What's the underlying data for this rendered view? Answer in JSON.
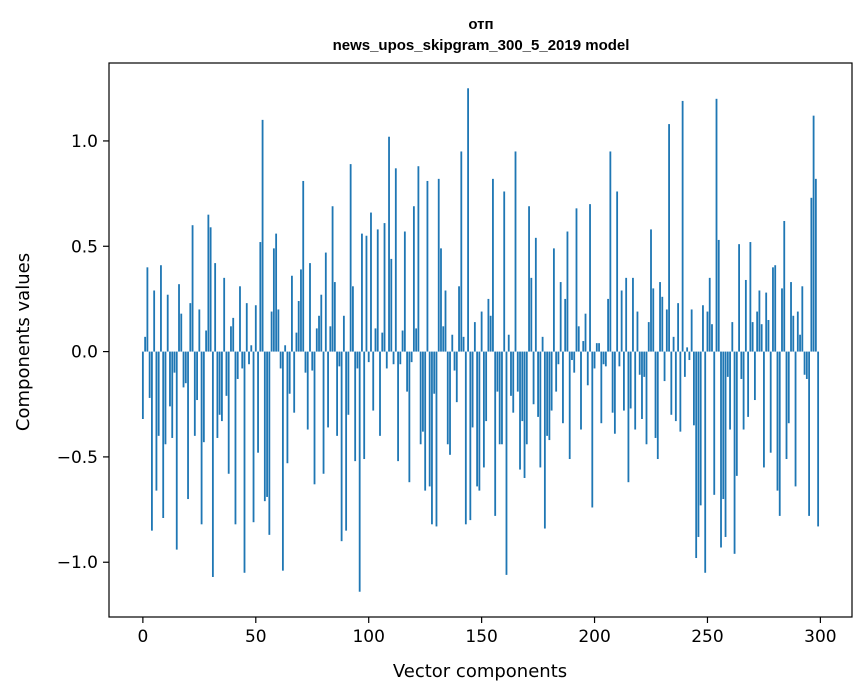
{
  "chart_data": {
    "type": "bar",
    "title": "отп",
    "subtitle": "news_upos_skipgram_300_5_2019 model",
    "xlabel": "Vector components",
    "ylabel": "Components values",
    "bar_color": "#1f77b4",
    "xlim": [
      -15,
      314
    ],
    "ylim": [
      -1.26,
      1.37
    ],
    "xticks": [
      0,
      50,
      100,
      150,
      200,
      250,
      300
    ],
    "xtick_labels": [
      "0",
      "50",
      "100",
      "150",
      "200",
      "250",
      "300"
    ],
    "yticks": [
      -1.0,
      -0.5,
      0.0,
      0.5,
      1.0
    ],
    "ytick_labels": [
      "−1.0",
      "−0.5",
      "0.0",
      "0.5",
      "1.0"
    ],
    "grid": false,
    "x_start": 0,
    "values": [
      -0.32,
      0.07,
      0.4,
      -0.22,
      -0.85,
      0.29,
      -0.66,
      -0.4,
      0.41,
      -0.79,
      -0.44,
      0.27,
      -0.26,
      -0.41,
      -0.1,
      -0.94,
      0.32,
      0.18,
      -0.17,
      -0.15,
      -0.7,
      0.23,
      0.6,
      -0.4,
      -0.23,
      0.2,
      -0.82,
      -0.43,
      0.1,
      0.65,
      0.59,
      -1.07,
      0.42,
      -0.41,
      -0.3,
      -0.33,
      0.35,
      -0.21,
      -0.58,
      0.12,
      0.16,
      -0.82,
      -0.13,
      0.31,
      -0.08,
      -1.05,
      0.23,
      -0.06,
      0.03,
      -0.81,
      0.22,
      -0.48,
      0.52,
      1.1,
      -0.71,
      -0.69,
      -0.87,
      0.19,
      0.49,
      0.56,
      0.2,
      -0.08,
      -1.04,
      0.03,
      -0.53,
      -0.2,
      0.36,
      -0.29,
      0.09,
      0.24,
      0.39,
      0.81,
      -0.1,
      -0.37,
      0.42,
      -0.09,
      -0.63,
      0.11,
      0.17,
      0.27,
      -0.58,
      0.47,
      -0.36,
      0.12,
      0.69,
      0.33,
      -0.4,
      -0.07,
      -0.9,
      0.17,
      -0.85,
      -0.3,
      0.89,
      0.31,
      -0.52,
      -0.08,
      -1.14,
      0.56,
      -0.51,
      0.55,
      -0.05,
      0.66,
      -0.28,
      0.11,
      0.58,
      -0.4,
      0.09,
      0.61,
      -0.08,
      1.02,
      0.44,
      -0.06,
      0.87,
      -0.52,
      -0.06,
      0.1,
      0.57,
      -0.19,
      -0.62,
      -0.05,
      0.69,
      0.11,
      0.88,
      -0.44,
      -0.38,
      -0.66,
      0.81,
      -0.64,
      -0.82,
      -0.2,
      -0.83,
      0.82,
      0.49,
      0.12,
      0.29,
      -0.44,
      -0.49,
      0.08,
      -0.09,
      -0.24,
      0.31,
      0.95,
      0.07,
      -0.82,
      1.25,
      -0.8,
      -0.36,
      0.14,
      -0.64,
      -0.66,
      0.19,
      -0.55,
      -0.33,
      0.25,
      0.17,
      0.82,
      -0.78,
      -0.19,
      -0.44,
      -0.44,
      0.76,
      -1.06,
      0.08,
      -0.21,
      -0.29,
      0.95,
      -0.19,
      -0.56,
      -0.33,
      -0.6,
      -0.44,
      0.69,
      0.35,
      -0.25,
      0.54,
      -0.31,
      -0.55,
      0.07,
      -0.84,
      -0.4,
      -0.42,
      -0.28,
      0.49,
      -0.19,
      -0.06,
      0.33,
      -0.34,
      0.25,
      0.57,
      -0.51,
      -0.04,
      -0.1,
      0.68,
      0.12,
      -0.37,
      0.05,
      0.18,
      -0.16,
      0.7,
      -0.74,
      -0.08,
      0.04,
      0.04,
      -0.34,
      -0.06,
      -0.07,
      0.25,
      0.95,
      -0.29,
      -0.39,
      0.76,
      -0.07,
      0.29,
      -0.28,
      0.35,
      -0.62,
      -0.27,
      0.35,
      -0.37,
      0.19,
      -0.11,
      -0.32,
      -0.12,
      -0.44,
      0.14,
      0.58,
      0.3,
      -0.41,
      -0.51,
      0.33,
      0.26,
      -0.14,
      0.2,
      1.08,
      -0.3,
      0.07,
      -0.33,
      0.23,
      -0.38,
      1.19,
      -0.12,
      0.02,
      -0.04,
      0.2,
      -0.35,
      -0.98,
      -0.88,
      -0.73,
      0.22,
      -1.05,
      0.19,
      0.35,
      0.13,
      -0.68,
      1.2,
      0.53,
      -0.93,
      -0.7,
      -0.88,
      -0.12,
      -0.37,
      0.14,
      -0.96,
      -0.59,
      0.51,
      -0.13,
      -0.37,
      0.34,
      -0.31,
      0.52,
      0.14,
      -0.23,
      0.19,
      0.29,
      0.13,
      -0.55,
      0.28,
      0.15,
      -0.48,
      0.4,
      0.41,
      -0.66,
      -0.78,
      0.3,
      0.62,
      -0.51,
      -0.34,
      0.33,
      0.17,
      -0.64,
      0.19,
      0.08,
      0.31,
      -0.11,
      -0.13,
      -0.78,
      0.73,
      1.12,
      0.82,
      -0.83
    ]
  }
}
